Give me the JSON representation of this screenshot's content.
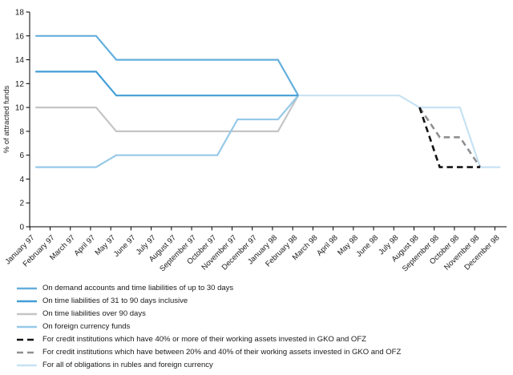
{
  "chart_data": {
    "type": "line",
    "title": "",
    "ylabel": "% of attracted funds",
    "xlabel": "",
    "ylim": [
      0,
      18
    ],
    "y_ticks": [
      0,
      2,
      4,
      6,
      8,
      10,
      12,
      14,
      16,
      18
    ],
    "grid": false,
    "legend_position": "bottom-left",
    "x_labels": [
      "January 97",
      "February 97",
      "March 97",
      "April 97",
      "May 97",
      "June 97",
      "July 97",
      "August 97",
      "September 97",
      "October 97",
      "November 97",
      "December 97",
      "January 98",
      "February 98",
      "March 98",
      "April 98",
      "May 98",
      "June 98",
      "July 98",
      "August 98",
      "September 98",
      "October 98",
      "November 98",
      "December 98"
    ],
    "series": [
      {
        "name": "On demand accounts and time liabilities of up to 30 days",
        "color": "#64AFDD",
        "dash": false,
        "points": [
          [
            0,
            16
          ],
          [
            3,
            16
          ],
          [
            4,
            14
          ],
          [
            12,
            14
          ],
          [
            13,
            11
          ]
        ]
      },
      {
        "name": "On time liabilities of 31 to 90 days inclusive",
        "color": "#429ED6",
        "dash": false,
        "points": [
          [
            0,
            13
          ],
          [
            3,
            13
          ],
          [
            4,
            11
          ],
          [
            13,
            11
          ]
        ]
      },
      {
        "name": "On time liabilities over 90 days",
        "color": "#C4C5C7",
        "dash": false,
        "points": [
          [
            0,
            10
          ],
          [
            3,
            10
          ],
          [
            4,
            8
          ],
          [
            12,
            8
          ],
          [
            13,
            11
          ]
        ]
      },
      {
        "name": "On foreign currency funds",
        "color": "#96C9E8",
        "dash": false,
        "points": [
          [
            0,
            5
          ],
          [
            3,
            5
          ],
          [
            4,
            6
          ],
          [
            9,
            6
          ],
          [
            10,
            9
          ],
          [
            12,
            9
          ],
          [
            13,
            11
          ]
        ]
      },
      {
        "name": "For credit institutions which have 40% or more of their working assets invested in GKO and OFZ",
        "color": "#141414",
        "dash": true,
        "points": [
          [
            19,
            10
          ],
          [
            20,
            5
          ],
          [
            22,
            5
          ]
        ]
      },
      {
        "name": "For credit institutions which have between 20% and 40% of their working assets invested in GKO and OFZ",
        "color": "#8E9092",
        "dash": true,
        "points": [
          [
            19,
            10
          ],
          [
            20,
            7.5
          ],
          [
            21,
            7.5
          ],
          [
            22,
            5
          ]
        ]
      },
      {
        "name": "For all of obligations in rubles and foreign currency",
        "color": "#C7E2F3",
        "dash": false,
        "points": [
          [
            13,
            11
          ],
          [
            18,
            11
          ],
          [
            19,
            10
          ],
          [
            21,
            10
          ],
          [
            22,
            5
          ],
          [
            23,
            5
          ]
        ]
      }
    ]
  }
}
